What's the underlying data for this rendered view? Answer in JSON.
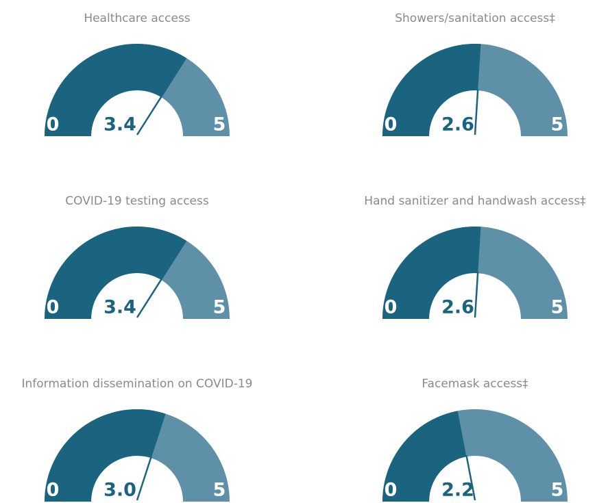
{
  "chart_data": [
    {
      "type": "gauge",
      "title": "Healthcare access",
      "value": 3.4,
      "ylim": [
        0,
        5
      ],
      "colors": [
        "#1a6480",
        "#5e91a8"
      ]
    },
    {
      "type": "gauge",
      "title": "Showers/sanitation access‡",
      "value": 2.6,
      "ylim": [
        0,
        5
      ],
      "colors": [
        "#1a6480",
        "#5e91a8"
      ]
    },
    {
      "type": "gauge",
      "title": "COVID-19 testing access",
      "value": 3.4,
      "ylim": [
        0,
        5
      ],
      "colors": [
        "#1a6480",
        "#5e91a8"
      ]
    },
    {
      "type": "gauge",
      "title": "Hand sanitizer and handwash access‡",
      "value": 2.6,
      "ylim": [
        0,
        5
      ],
      "colors": [
        "#1a6480",
        "#5e91a8"
      ]
    },
    {
      "type": "gauge",
      "title": "Information dissemination on COVID-19",
      "value": 3,
      "value_label": "3.0",
      "ylim": [
        0,
        5
      ],
      "colors": [
        "#1a6480",
        "#5e91a8"
      ]
    },
    {
      "type": "gauge",
      "title": "Facemask access‡",
      "value": 2.2,
      "ylim": [
        0,
        5
      ],
      "colors": [
        "#1a6480",
        "#5e91a8"
      ]
    }
  ]
}
